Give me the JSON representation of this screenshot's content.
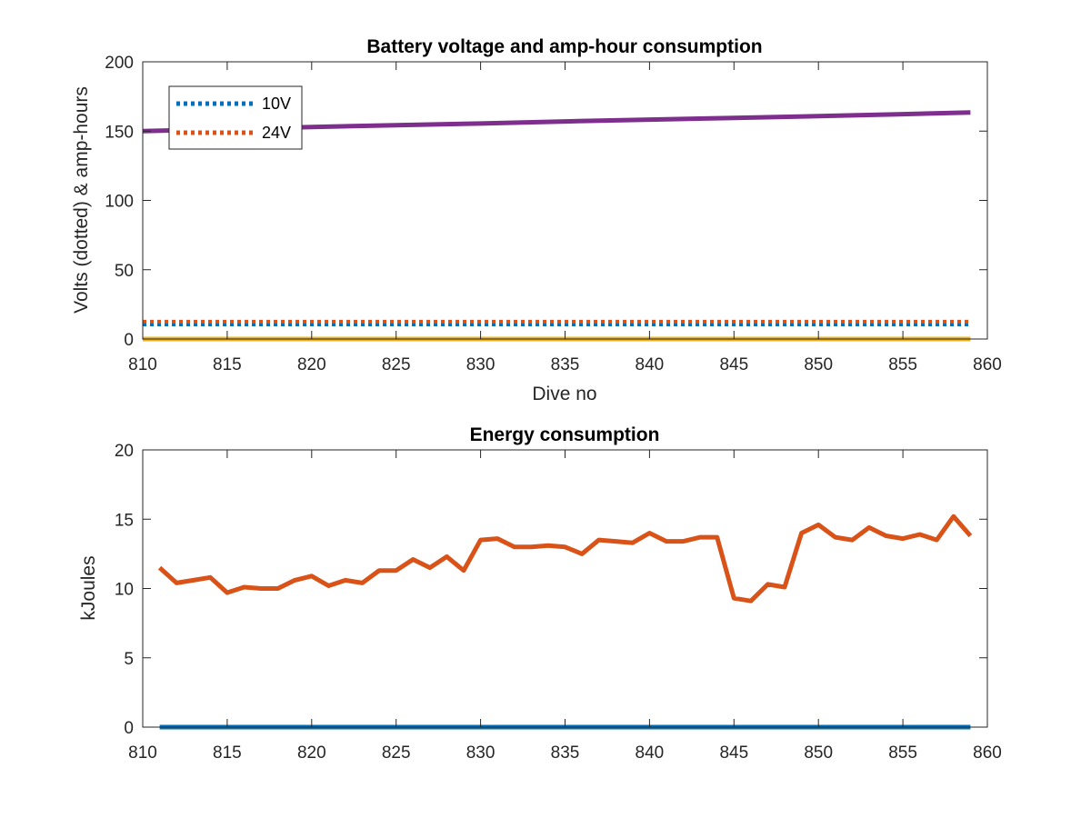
{
  "chart_data": [
    {
      "type": "line",
      "title": "Battery voltage and amp-hour consumption",
      "xlabel": "Dive no",
      "ylabel": "Volts (dotted) & amp-hours",
      "xlim": [
        810,
        860
      ],
      "ylim": [
        0,
        200
      ],
      "xticks": [
        810,
        815,
        820,
        825,
        830,
        835,
        840,
        845,
        850,
        855,
        860
      ],
      "yticks": [
        0,
        50,
        100,
        150,
        200
      ],
      "grid": false,
      "legend_position": "top-left",
      "series": [
        {
          "name": "10V",
          "style": "dotted",
          "color": "#0072BD",
          "x": [
            810,
            859
          ],
          "y": [
            10.5,
            10.5
          ]
        },
        {
          "name": "24V",
          "style": "dotted",
          "color": "#D95319",
          "x": [
            810,
            859
          ],
          "y": [
            12.5,
            12.5
          ]
        },
        {
          "style": "solid",
          "color": "#7E2F8E",
          "x": [
            810,
            815,
            820,
            825,
            830,
            835,
            840,
            845,
            850,
            855,
            859
          ],
          "y": [
            150,
            151.5,
            153,
            154.3,
            155.5,
            157,
            158.3,
            159.5,
            160.8,
            162.2,
            163.5
          ]
        },
        {
          "style": "solid",
          "color": "#EDB120",
          "x": [
            810,
            859
          ],
          "y": [
            0,
            0
          ]
        }
      ]
    },
    {
      "type": "line",
      "title": "Energy consumption",
      "xlabel": "",
      "ylabel": "kJoules",
      "xlim": [
        810,
        860
      ],
      "ylim": [
        0,
        20
      ],
      "xticks": [
        810,
        815,
        820,
        825,
        830,
        835,
        840,
        845,
        850,
        855,
        860
      ],
      "yticks": [
        0,
        5,
        10,
        15,
        20
      ],
      "grid": false,
      "series": [
        {
          "style": "solid",
          "color": "#0072BD",
          "x": [
            811,
            859
          ],
          "y": [
            0,
            0
          ]
        },
        {
          "style": "solid",
          "color": "#D95319",
          "x": [
            811,
            812,
            813,
            814,
            815,
            816,
            817,
            818,
            819,
            820,
            821,
            822,
            823,
            824,
            825,
            826,
            827,
            828,
            829,
            830,
            831,
            832,
            833,
            834,
            835,
            836,
            837,
            838,
            839,
            840,
            841,
            842,
            843,
            844,
            845,
            846,
            847,
            848,
            849,
            850,
            851,
            852,
            853,
            854,
            855,
            856,
            857,
            858,
            859
          ],
          "y": [
            11.5,
            10.4,
            10.6,
            10.8,
            9.7,
            10.1,
            10.0,
            10.0,
            10.6,
            10.9,
            10.2,
            10.6,
            10.4,
            11.3,
            11.3,
            12.1,
            11.5,
            12.3,
            11.3,
            13.5,
            13.6,
            13.0,
            13.0,
            13.1,
            13.0,
            12.5,
            13.5,
            13.4,
            13.3,
            14.0,
            13.4,
            13.4,
            13.7,
            13.7,
            9.3,
            9.1,
            10.3,
            10.1,
            14.0,
            14.6,
            13.7,
            13.5,
            14.4,
            13.8,
            13.6,
            13.9,
            13.5,
            15.2,
            13.8
          ]
        }
      ]
    }
  ]
}
